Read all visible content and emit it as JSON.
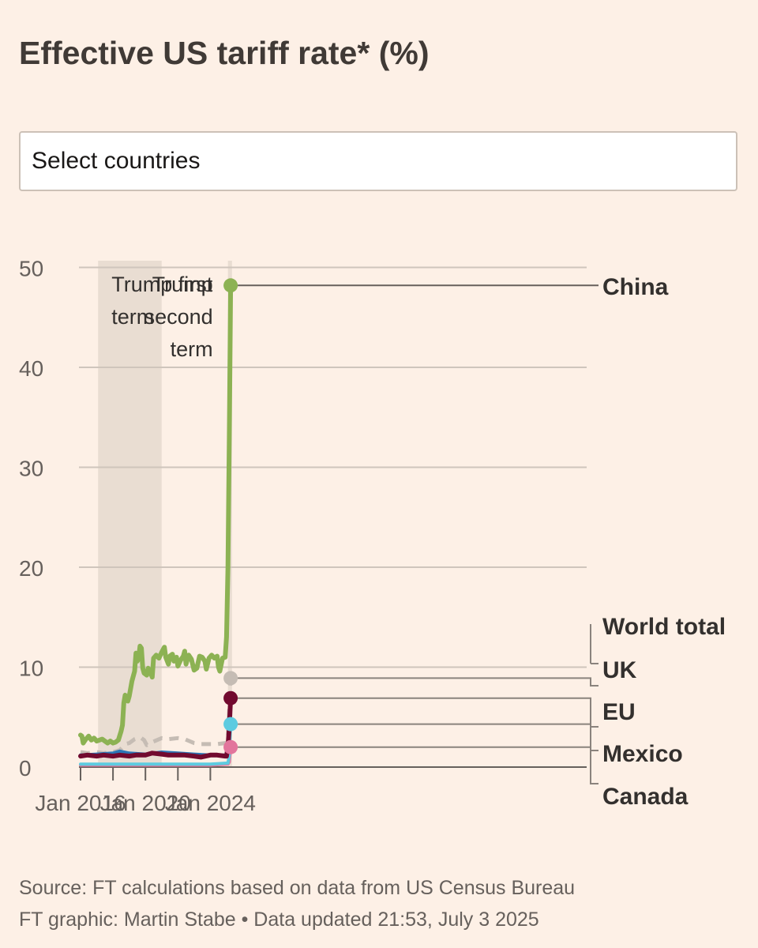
{
  "title": "Effective US tariff rate* (%)",
  "select": {
    "label": "Select countries"
  },
  "footer": {
    "source": "Source: FT calculations based on data from US Census Bureau",
    "credit": "FT graphic: Martin Stabe • Data updated 21:53, July 3 2025"
  },
  "chart_data": {
    "type": "line",
    "title": "Effective US tariff rate* (%)",
    "ylim": [
      0,
      50
    ],
    "yticks": [
      0,
      10,
      20,
      30,
      40,
      50
    ],
    "xlim": [
      "2016-01",
      "2025-05"
    ],
    "xticks": [
      {
        "value": "2016-01",
        "label": "Jan 2016"
      },
      {
        "value": "2018-01",
        "label": ""
      },
      {
        "value": "2020-01",
        "label": "Jan 2020"
      },
      {
        "value": "2022-01",
        "label": ""
      },
      {
        "value": "2024-01",
        "label": "Jan 2024"
      }
    ],
    "grid": true,
    "shaded_periods": [
      {
        "start": "2017-02",
        "end": "2021-01",
        "label_lines": [
          "Trump first",
          "term"
        ],
        "align": "left"
      },
      {
        "start": "2025-02",
        "end": "2025-05",
        "label_lines": [
          "Trump",
          "second",
          "term"
        ],
        "align": "right"
      }
    ],
    "series": [
      {
        "name": "China",
        "color": "#8cb253",
        "width": 6,
        "dash": false,
        "points": [
          [
            "2016-01",
            3.2
          ],
          [
            "2016-02",
            3.1
          ],
          [
            "2016-03",
            2.4
          ],
          [
            "2016-05",
            2.8
          ],
          [
            "2016-07",
            3.1
          ],
          [
            "2016-09",
            2.7
          ],
          [
            "2016-11",
            2.9
          ],
          [
            "2017-01",
            2.6
          ],
          [
            "2017-03",
            2.7
          ],
          [
            "2017-05",
            2.8
          ],
          [
            "2017-07",
            2.6
          ],
          [
            "2017-09",
            2.4
          ],
          [
            "2017-11",
            2.6
          ],
          [
            "2018-01",
            2.4
          ],
          [
            "2018-03",
            2.5
          ],
          [
            "2018-05",
            2.7
          ],
          [
            "2018-07",
            3.6
          ],
          [
            "2018-08",
            4.2
          ],
          [
            "2018-09",
            6.4
          ],
          [
            "2018-10",
            7.2
          ],
          [
            "2018-11",
            6.9
          ],
          [
            "2018-12",
            6.6
          ],
          [
            "2019-01",
            7.1
          ],
          [
            "2019-03",
            8.6
          ],
          [
            "2019-05",
            9.6
          ],
          [
            "2019-06",
            11.4
          ],
          [
            "2019-07",
            10.6
          ],
          [
            "2019-08",
            10.9
          ],
          [
            "2019-09",
            12.1
          ],
          [
            "2019-10",
            11.9
          ],
          [
            "2019-11",
            9.9
          ],
          [
            "2019-12",
            9.4
          ],
          [
            "2020-02",
            9.2
          ],
          [
            "2020-03",
            9.9
          ],
          [
            "2020-04",
            9.7
          ],
          [
            "2020-06",
            9.0
          ],
          [
            "2020-07",
            10.9
          ],
          [
            "2020-09",
            11.2
          ],
          [
            "2020-11",
            10.9
          ],
          [
            "2021-01",
            11.5
          ],
          [
            "2021-03",
            12.0
          ],
          [
            "2021-04",
            11.0
          ],
          [
            "2021-06",
            10.3
          ],
          [
            "2021-07",
            11.1
          ],
          [
            "2021-09",
            11.3
          ],
          [
            "2021-10",
            10.6
          ],
          [
            "2021-12",
            11.0
          ],
          [
            "2022-01",
            10.1
          ],
          [
            "2022-03",
            10.7
          ],
          [
            "2022-05",
            11.1
          ],
          [
            "2022-06",
            11.6
          ],
          [
            "2022-07",
            10.3
          ],
          [
            "2022-09",
            11.2
          ],
          [
            "2022-11",
            10.8
          ],
          [
            "2023-01",
            9.7
          ],
          [
            "2023-03",
            9.9
          ],
          [
            "2023-05",
            11.1
          ],
          [
            "2023-07",
            11.0
          ],
          [
            "2023-09",
            10.6
          ],
          [
            "2023-10",
            9.8
          ],
          [
            "2023-12",
            10.9
          ],
          [
            "2024-02",
            11.2
          ],
          [
            "2024-04",
            10.9
          ],
          [
            "2024-06",
            11.1
          ],
          [
            "2024-07",
            10.0
          ],
          [
            "2024-08",
            9.6
          ],
          [
            "2024-10",
            10.9
          ],
          [
            "2024-12",
            11.0
          ],
          [
            "2025-01",
            13.0
          ],
          [
            "2025-02",
            20.0
          ],
          [
            "2025-03",
            33.0
          ],
          [
            "2025-04",
            48.2
          ]
        ]
      },
      {
        "name": "World total",
        "color": "#c5bcb4",
        "width": 5,
        "dash": true,
        "points": [
          [
            "2016-01",
            1.5
          ],
          [
            "2016-06",
            1.4
          ],
          [
            "2017-01",
            1.5
          ],
          [
            "2017-06",
            1.4
          ],
          [
            "2018-01",
            1.5
          ],
          [
            "2018-06",
            1.7
          ],
          [
            "2018-10",
            2.3
          ],
          [
            "2019-01",
            2.4
          ],
          [
            "2019-05",
            2.8
          ],
          [
            "2019-09",
            3.0
          ],
          [
            "2019-12",
            2.7
          ],
          [
            "2020-02",
            2.2
          ],
          [
            "2020-06",
            2.5
          ],
          [
            "2021-01",
            2.9
          ],
          [
            "2021-06",
            2.8
          ],
          [
            "2022-01",
            2.9
          ],
          [
            "2022-06",
            2.8
          ],
          [
            "2023-01",
            2.4
          ],
          [
            "2023-06",
            2.3
          ],
          [
            "2024-01",
            2.3
          ],
          [
            "2024-06",
            2.3
          ],
          [
            "2024-12",
            2.4
          ],
          [
            "2025-01",
            2.4
          ],
          [
            "2025-02",
            3.0
          ],
          [
            "2025-04",
            8.9
          ]
        ]
      },
      {
        "name": "Mexico",
        "color": "#e2759c",
        "width": 4,
        "dash": false,
        "points": [
          [
            "2016-01",
            0.2
          ],
          [
            "2018-01",
            0.2
          ],
          [
            "2020-01",
            0.2
          ],
          [
            "2022-01",
            0.2
          ],
          [
            "2024-01",
            0.2
          ],
          [
            "2025-02",
            0.3
          ],
          [
            "2025-03",
            0.5
          ],
          [
            "2025-04",
            2.0
          ]
        ]
      },
      {
        "name": "Canada",
        "color": "#5dcbe0",
        "width": 4,
        "dash": false,
        "points": [
          [
            "2016-01",
            0.3
          ],
          [
            "2018-01",
            0.3
          ],
          [
            "2020-01",
            0.3
          ],
          [
            "2022-01",
            0.3
          ],
          [
            "2024-01",
            0.3
          ],
          [
            "2025-02",
            0.4
          ],
          [
            "2025-03",
            1.2
          ],
          [
            "2025-04",
            4.3
          ]
        ]
      },
      {
        "name": "UK",
        "color": "#2b77b7",
        "width": 4,
        "dash": false,
        "points": [
          [
            "2016-01",
            1.2
          ],
          [
            "2017-01",
            1.3
          ],
          [
            "2018-01",
            1.4
          ],
          [
            "2018-06",
            1.6
          ],
          [
            "2019-01",
            1.4
          ],
          [
            "2020-01",
            1.3
          ],
          [
            "2021-01",
            1.5
          ],
          [
            "2022-01",
            1.4
          ],
          [
            "2023-01",
            1.3
          ],
          [
            "2024-01",
            1.2
          ],
          [
            "2025-01",
            1.2
          ],
          [
            "2025-03",
            3.0
          ],
          [
            "2025-04",
            6.2
          ]
        ]
      },
      {
        "name": "EU",
        "color": "#720a2f",
        "width": 6,
        "dash": false,
        "points": [
          [
            "2016-01",
            1.1
          ],
          [
            "2016-06",
            1.2
          ],
          [
            "2017-01",
            1.1
          ],
          [
            "2017-06",
            1.2
          ],
          [
            "2018-01",
            1.1
          ],
          [
            "2018-06",
            1.2
          ],
          [
            "2019-01",
            1.1
          ],
          [
            "2019-06",
            1.2
          ],
          [
            "2020-01",
            1.2
          ],
          [
            "2020-06",
            1.4
          ],
          [
            "2021-01",
            1.3
          ],
          [
            "2021-06",
            1.2
          ],
          [
            "2022-01",
            1.2
          ],
          [
            "2022-06",
            1.2
          ],
          [
            "2023-01",
            1.1
          ],
          [
            "2023-06",
            1.0
          ],
          [
            "2024-01",
            1.2
          ],
          [
            "2024-06",
            1.2
          ],
          [
            "2024-12",
            1.1
          ],
          [
            "2025-01",
            1.1
          ],
          [
            "2025-02",
            2.0
          ],
          [
            "2025-03",
            4.0
          ],
          [
            "2025-04",
            6.9
          ]
        ]
      }
    ],
    "end_markers": [
      {
        "series": "China",
        "value": 48.2
      },
      {
        "series": "World total",
        "value": 8.9
      },
      {
        "series": "EU",
        "value": 6.9
      },
      {
        "series": "Canada",
        "value": 4.3
      },
      {
        "series": "Mexico",
        "value": 2.0
      }
    ],
    "labels": [
      "China",
      "World total",
      "UK",
      "EU",
      "Mexico",
      "Canada"
    ]
  }
}
